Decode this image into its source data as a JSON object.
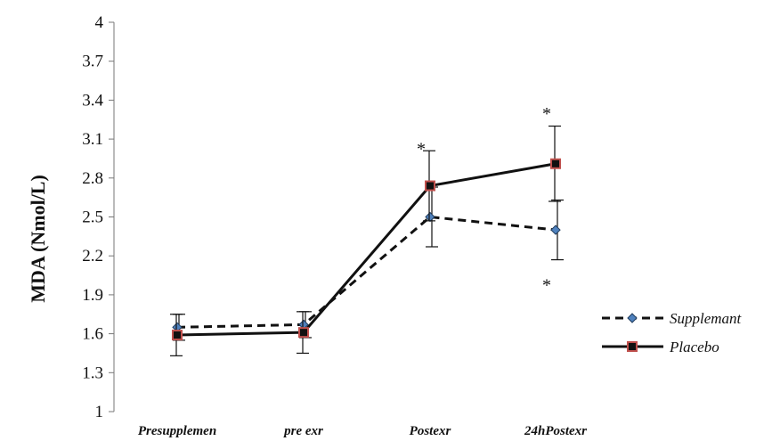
{
  "chart_data": {
    "type": "line",
    "title": "",
    "xlabel": "",
    "ylabel": "MDA (Nmol/L)",
    "categories": [
      "Presupplemen",
      "pre exr",
      "Postexr",
      "24hPostexr"
    ],
    "ylim": [
      1,
      4
    ],
    "yticks": [
      "1",
      "1.3",
      "1.6",
      "1.9",
      "2.2",
      "2.5",
      "2.8",
      "3.1",
      "3.4",
      "3.7",
      "4"
    ],
    "grid": false,
    "legend": "right",
    "series": [
      {
        "name": "Supplemant",
        "values": [
          1.65,
          1.67,
          2.5,
          2.4
        ],
        "error": [
          0.1,
          0.1,
          0.23,
          0.23
        ],
        "line": "dashed",
        "marker": "diamond",
        "color": "#111111",
        "marker_color": "#4f81bd"
      },
      {
        "name": "Placebo",
        "values": [
          1.59,
          1.61,
          2.74,
          2.91
        ],
        "error": [
          0.16,
          0.16,
          0.27,
          0.29
        ],
        "line": "solid",
        "marker": "square",
        "color": "#111111",
        "marker_color": "#c0504d"
      }
    ],
    "annotations": [
      {
        "text": "*",
        "category": 2,
        "y": 3.05
      },
      {
        "text": "*",
        "category": 3,
        "y": 3.32
      },
      {
        "text": "*",
        "category": 3,
        "y": 2.0
      }
    ]
  }
}
